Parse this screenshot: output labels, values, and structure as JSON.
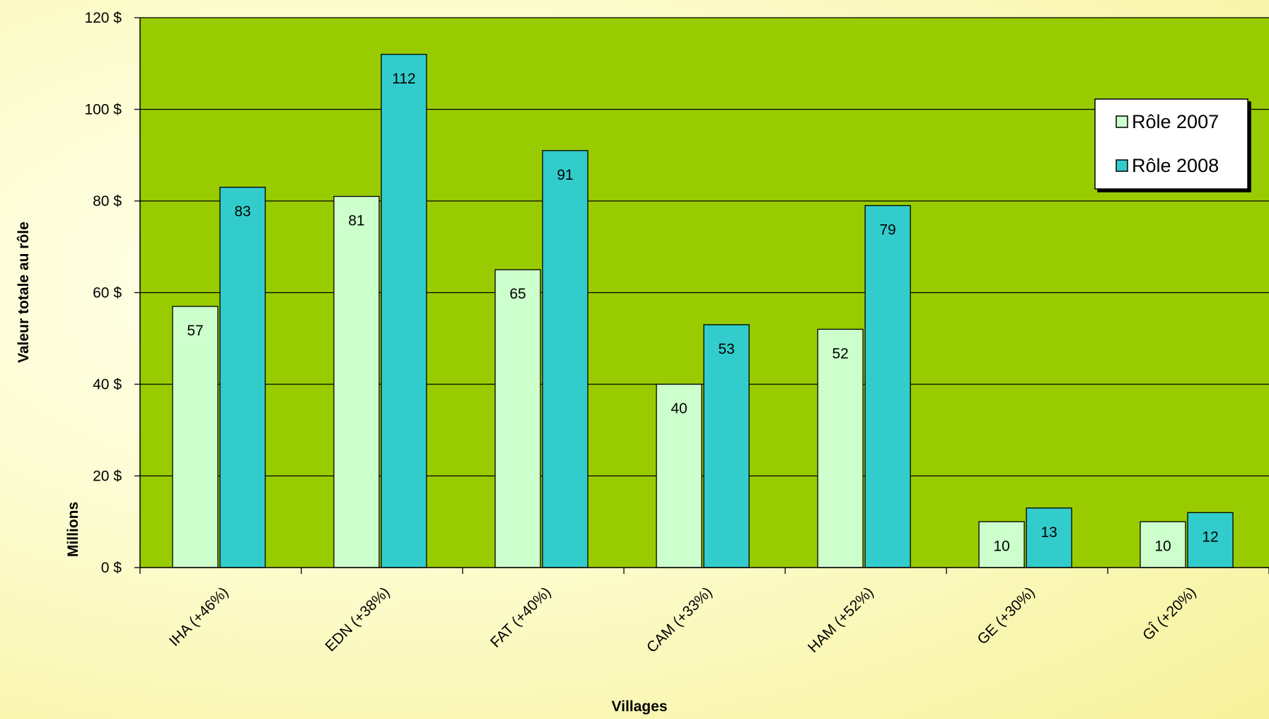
{
  "chart_data": {
    "type": "bar",
    "title": "",
    "xlabel": "Villages",
    "ylabel": "Valeur totale au rôle",
    "ylabel_unit": "Millions",
    "ylim": [
      0,
      120
    ],
    "ytick_labels": [
      "0 $",
      "20 $",
      "40 $",
      "60 $",
      "80 $",
      "100 $",
      "120 $"
    ],
    "ytick_values": [
      0,
      20,
      40,
      60,
      80,
      100,
      120
    ],
    "categories": [
      "IHA (+46%)",
      "EDN (+38%)",
      "FAT (+40%)",
      "CAM (+33%)",
      "HAM (+52%)",
      "GE (+30%)",
      "GÎ (+20%)"
    ],
    "series": [
      {
        "name": "Rôle 2007",
        "values": [
          57,
          81,
          65,
          40,
          52,
          10,
          10
        ],
        "labels": [
          "57",
          "81",
          "65",
          "40",
          "52",
          "10",
          "10"
        ]
      },
      {
        "name": "Rôle 2008",
        "values": [
          83,
          112,
          91,
          53,
          79,
          13,
          12
        ],
        "labels": [
          "83",
          "112",
          "91",
          "53",
          "79",
          "13",
          "12"
        ]
      }
    ],
    "grid": true,
    "legend_position": "top-right",
    "colors": {
      "plot_background": "#99cc00",
      "series_2007": "#ccffcc",
      "series_2008": "#33cccc",
      "gridline": "#000000"
    }
  }
}
